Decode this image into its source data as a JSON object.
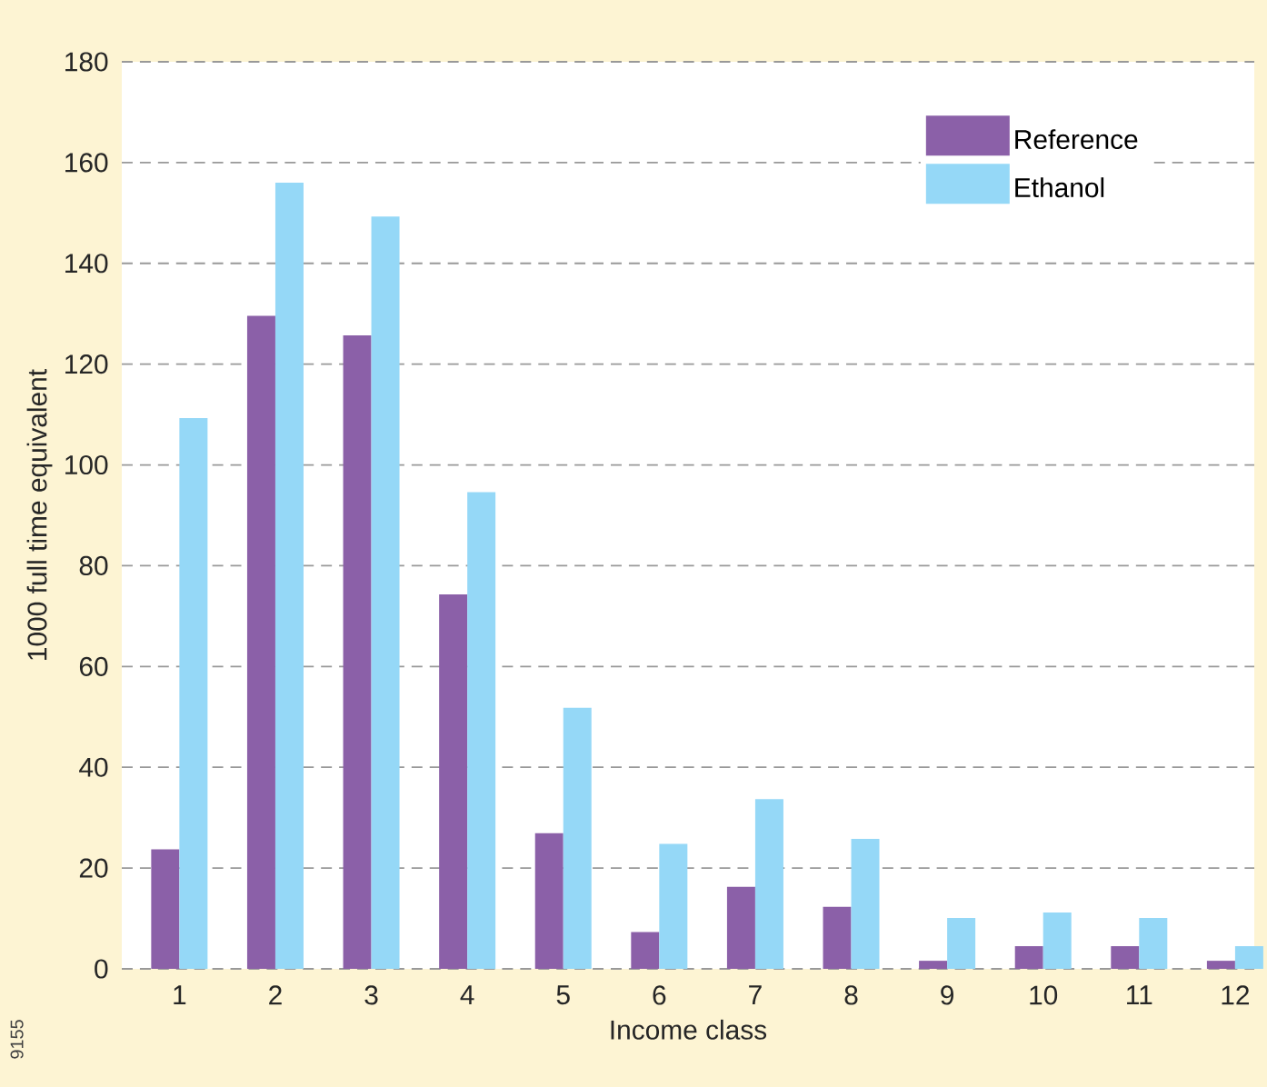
{
  "chart_data": {
    "type": "bar",
    "xlabel": "Income class",
    "ylabel": "1000 full time equivalent",
    "categories": [
      "1",
      "2",
      "3",
      "4",
      "5",
      "6",
      "7",
      "8",
      "9",
      "10",
      "11",
      "12"
    ],
    "series": [
      {
        "name": "Reference",
        "color": "#8b60a8",
        "values": [
          23.7,
          129.6,
          125.7,
          74.3,
          26.9,
          7.3,
          16.3,
          12.3,
          1.6,
          4.5,
          4.5,
          1.6
        ]
      },
      {
        "name": "Ethanol",
        "color": "#95d8f7",
        "values": [
          109.3,
          156,
          149.3,
          94.6,
          51.8,
          24.8,
          33.7,
          25.8,
          10.1,
          11.2,
          10.1,
          4.5
        ]
      }
    ],
    "ylim": [
      0,
      180
    ],
    "yticks": [
      0,
      20,
      40,
      60,
      80,
      100,
      120,
      140,
      160,
      180
    ],
    "grid": "y",
    "legend": "top right",
    "annotations": [
      "9155"
    ]
  }
}
